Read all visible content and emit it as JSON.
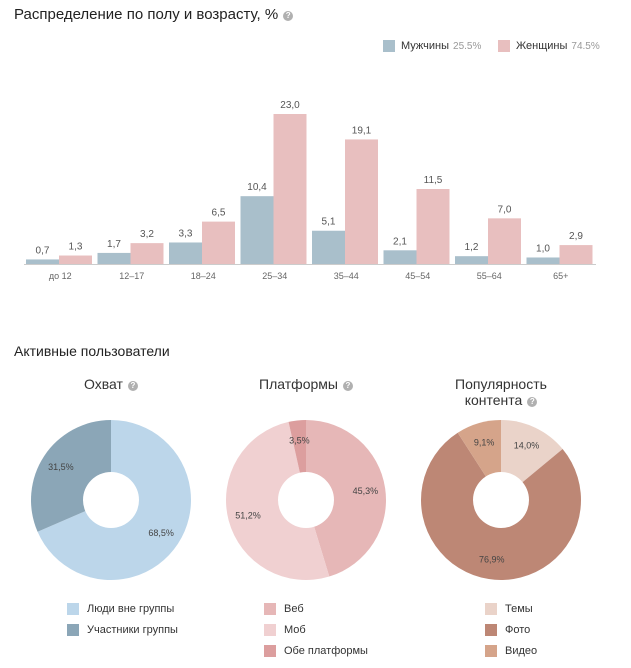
{
  "header": {
    "title": "Распределение по полу и возрасту, %",
    "help_icon": "question-circle-icon"
  },
  "colors": {
    "men": "#a9bfcb",
    "women": "#e8bfbf",
    "axis": "#cccccc"
  },
  "legend": {
    "men_label": "Мужчины",
    "men_pct": "25.5%",
    "women_label": "Женщины",
    "women_pct": "74.5%"
  },
  "chart_data": [
    {
      "type": "bar",
      "title": "Распределение по полу и возрасту, %",
      "categories": [
        "до 12",
        "12–17",
        "18–24",
        "25–34",
        "35–44",
        "45–54",
        "55–64",
        "65+"
      ],
      "series": [
        {
          "name": "Мужчины",
          "values": [
            0.7,
            1.7,
            3.3,
            10.4,
            5.1,
            2.1,
            1.2,
            1.0
          ],
          "labels": [
            "0,7",
            "1,7",
            "3,3",
            "10,4",
            "5,1",
            "2,1",
            "1,2",
            "1,0"
          ]
        },
        {
          "name": "Женщины",
          "values": [
            1.3,
            3.2,
            6.5,
            23.0,
            19.1,
            11.5,
            7.0,
            2.9
          ],
          "labels": [
            "1,3",
            "3,2",
            "6,5",
            "23,0",
            "19,1",
            "11,5",
            "7,0",
            "2,9"
          ]
        }
      ],
      "ylim": [
        0,
        23
      ],
      "legend_position": "top-right",
      "grid": false
    },
    {
      "type": "pie",
      "title": "Охват",
      "slices": [
        {
          "name": "Люди вне группы",
          "value": 68.5,
          "label": "68,5%",
          "color": "#bcd6ea"
        },
        {
          "name": "Участники группы",
          "value": 31.5,
          "label": "31,5%",
          "color": "#8ba6b7"
        }
      ]
    },
    {
      "type": "pie",
      "title": "Платформы",
      "slices": [
        {
          "name": "Веб",
          "value": 45.3,
          "label": "45,3%",
          "color": "#e6b7b7"
        },
        {
          "name": "Моб",
          "value": 51.2,
          "label": "51,2%",
          "color": "#f0d0d1"
        },
        {
          "name": "Обе платформы",
          "value": 3.5,
          "label": "3,5%",
          "color": "#dc9e9e"
        }
      ]
    },
    {
      "type": "pie",
      "title": "Популярность контента",
      "slices": [
        {
          "name": "Темы",
          "value": 14.0,
          "label": "14,0%",
          "color": "#ead3c9"
        },
        {
          "name": "Фото",
          "value": 76.9,
          "label": "76,9%",
          "color": "#bd8775"
        },
        {
          "name": "Видео",
          "value": 9.1,
          "label": "9,1%",
          "color": "#d5a48a"
        }
      ]
    }
  ],
  "section": {
    "title": "Активные пользователи"
  },
  "pies": {
    "reach_title": "Охват",
    "platforms_title": "Платформы",
    "content_title_line1": "Популярность",
    "content_title_line2": "контента"
  }
}
